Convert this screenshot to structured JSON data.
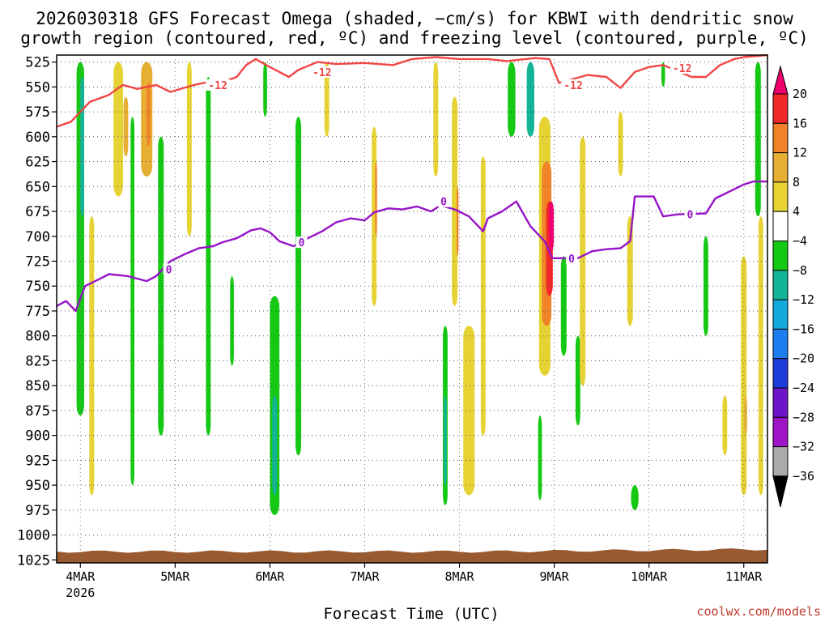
{
  "chart_data": {
    "type": "heatmap",
    "title_line1": "2026030318 GFS Forecast Omega (shaded, −cm/s) for KBWI with dendritic snow",
    "title_line2": "growth region (contoured, red, ºC) and freezing level (contoured, purple, ºC)",
    "xlabel": "Forecast Time (UTC)",
    "credit": "coolwx.com/models",
    "x_ticks": [
      "4MAR",
      "5MAR",
      "6MAR",
      "7MAR",
      "8MAR",
      "9MAR",
      "10MAR",
      "11MAR"
    ],
    "x_year": "2026",
    "x_range_days": [
      3.75,
      11.25
    ],
    "y_ticks": [
      525,
      550,
      575,
      600,
      625,
      650,
      675,
      700,
      725,
      750,
      775,
      800,
      825,
      850,
      875,
      900,
      925,
      950,
      975,
      1000,
      1025
    ],
    "y_range_hpa": [
      518,
      1028
    ],
    "colorbar": {
      "labels": [
        "20",
        "16",
        "12",
        "8",
        "4",
        "−4",
        "−8",
        "−12",
        "−16",
        "−20",
        "−24",
        "−28",
        "−32",
        "−36"
      ],
      "colors": [
        "#f0006e",
        "#f02828",
        "#f08228",
        "#e6ae32",
        "#e6d232",
        "#ffffff",
        "#14c814",
        "#14b496",
        "#14aadc",
        "#1e7ef0",
        "#1e3cdc",
        "#6e14c8",
        "#a014c8",
        "#aaaaaa"
      ]
    },
    "dendritic_contour": {
      "label": "-12",
      "color": "#f04646",
      "points": [
        [
          3.75,
          590
        ],
        [
          3.9,
          585
        ],
        [
          4.0,
          575
        ],
        [
          4.1,
          565
        ],
        [
          4.3,
          558
        ],
        [
          4.45,
          548
        ],
        [
          4.6,
          552
        ],
        [
          4.8,
          548
        ],
        [
          4.95,
          555
        ],
        [
          5.2,
          548
        ],
        [
          5.35,
          545
        ],
        [
          5.5,
          545
        ],
        [
          5.65,
          540
        ],
        [
          5.75,
          528
        ],
        [
          5.85,
          522
        ],
        [
          6.0,
          530
        ],
        [
          6.2,
          540
        ],
        [
          6.3,
          533
        ],
        [
          6.5,
          525
        ],
        [
          6.7,
          527
        ],
        [
          7.0,
          526
        ],
        [
          7.3,
          528
        ],
        [
          7.5,
          522
        ],
        [
          7.75,
          520
        ],
        [
          8.0,
          522
        ],
        [
          8.3,
          522
        ],
        [
          8.5,
          524
        ],
        [
          8.8,
          521
        ],
        [
          8.95,
          522
        ],
        [
          9.05,
          546
        ],
        [
          9.2,
          542
        ],
        [
          9.35,
          538
        ],
        [
          9.55,
          540
        ],
        [
          9.7,
          551
        ],
        [
          9.85,
          535
        ],
        [
          10.0,
          530
        ],
        [
          10.15,
          528
        ],
        [
          10.3,
          534
        ],
        [
          10.45,
          540
        ],
        [
          10.6,
          540
        ],
        [
          10.75,
          528
        ],
        [
          10.9,
          522
        ],
        [
          11.0,
          520
        ],
        [
          11.25,
          518
        ]
      ],
      "label_positions": [
        [
          5.35,
          548
        ],
        [
          6.45,
          535
        ],
        [
          9.1,
          548
        ],
        [
          10.25,
          531
        ]
      ]
    },
    "freezing_contour": {
      "label": "0",
      "color": "#9614c8",
      "points": [
        [
          3.75,
          770
        ],
        [
          3.85,
          765
        ],
        [
          3.95,
          775
        ],
        [
          4.05,
          750
        ],
        [
          4.2,
          743
        ],
        [
          4.3,
          738
        ],
        [
          4.5,
          740
        ],
        [
          4.7,
          745
        ],
        [
          4.8,
          740
        ],
        [
          4.95,
          725
        ],
        [
          5.1,
          718
        ],
        [
          5.25,
          712
        ],
        [
          5.4,
          710
        ],
        [
          5.5,
          706
        ],
        [
          5.65,
          702
        ],
        [
          5.8,
          694
        ],
        [
          5.9,
          692
        ],
        [
          6.0,
          696
        ],
        [
          6.1,
          705
        ],
        [
          6.25,
          710
        ],
        [
          6.4,
          702
        ],
        [
          6.55,
          695
        ],
        [
          6.7,
          686
        ],
        [
          6.85,
          682
        ],
        [
          7.0,
          684
        ],
        [
          7.1,
          676
        ],
        [
          7.25,
          672
        ],
        [
          7.4,
          673
        ],
        [
          7.55,
          670
        ],
        [
          7.7,
          675
        ],
        [
          7.8,
          669
        ],
        [
          7.95,
          673
        ],
        [
          8.1,
          680
        ],
        [
          8.25,
          695
        ],
        [
          8.3,
          682
        ],
        [
          8.45,
          675
        ],
        [
          8.6,
          665
        ],
        [
          8.75,
          690
        ],
        [
          8.9,
          705
        ],
        [
          8.98,
          722
        ],
        [
          9.1,
          722
        ],
        [
          9.25,
          722
        ],
        [
          9.4,
          715
        ],
        [
          9.55,
          713
        ],
        [
          9.7,
          712
        ],
        [
          9.8,
          705
        ],
        [
          9.85,
          660
        ],
        [
          10.05,
          660
        ],
        [
          10.15,
          680
        ],
        [
          10.3,
          678
        ],
        [
          10.6,
          677
        ],
        [
          10.7,
          662
        ],
        [
          10.85,
          655
        ],
        [
          11.0,
          648
        ],
        [
          11.1,
          645
        ],
        [
          11.25,
          645
        ]
      ],
      "label_positions": [
        [
          4.9,
          733
        ],
        [
          6.3,
          706
        ],
        [
          7.8,
          665
        ],
        [
          9.15,
          722
        ],
        [
          10.4,
          678
        ]
      ]
    },
    "ground_level_hpa": 1015,
    "omega_shading": [
      {
        "x": 4.0,
        "width": 0.08,
        "p_top": 525,
        "p_bot": 880,
        "band": -8
      },
      {
        "x": 4.02,
        "width": 0.04,
        "p_top": 540,
        "p_bot": 680,
        "band": -12
      },
      {
        "x": 4.12,
        "width": 0.05,
        "p_top": 680,
        "p_bot": 960,
        "band": 4
      },
      {
        "x": 4.4,
        "width": 0.1,
        "p_top": 525,
        "p_bot": 660,
        "band": 4
      },
      {
        "x": 4.48,
        "width": 0.05,
        "p_top": 560,
        "p_bot": 620,
        "band": 8
      },
      {
        "x": 4.7,
        "width": 0.12,
        "p_top": 525,
        "p_bot": 640,
        "band": 8
      },
      {
        "x": 4.72,
        "width": 0.04,
        "p_top": 545,
        "p_bot": 610,
        "band": 12
      },
      {
        "x": 4.55,
        "width": 0.04,
        "p_top": 580,
        "p_bot": 950,
        "band": -8
      },
      {
        "x": 4.85,
        "width": 0.06,
        "p_top": 600,
        "p_bot": 900,
        "band": -8
      },
      {
        "x": 5.15,
        "width": 0.05,
        "p_top": 525,
        "p_bot": 700,
        "band": 4
      },
      {
        "x": 5.35,
        "width": 0.05,
        "p_top": 540,
        "p_bot": 900,
        "band": -8
      },
      {
        "x": 5.6,
        "width": 0.04,
        "p_top": 740,
        "p_bot": 830,
        "band": -8
      },
      {
        "x": 5.95,
        "width": 0.04,
        "p_top": 525,
        "p_bot": 580,
        "band": -8
      },
      {
        "x": 6.05,
        "width": 0.1,
        "p_top": 760,
        "p_bot": 980,
        "band": -8
      },
      {
        "x": 6.05,
        "width": 0.05,
        "p_top": 860,
        "p_bot": 960,
        "band": -12
      },
      {
        "x": 6.3,
        "width": 0.06,
        "p_top": 580,
        "p_bot": 920,
        "band": -8
      },
      {
        "x": 6.6,
        "width": 0.05,
        "p_top": 525,
        "p_bot": 600,
        "band": 4
      },
      {
        "x": 7.1,
        "width": 0.05,
        "p_top": 590,
        "p_bot": 770,
        "band": 4
      },
      {
        "x": 7.12,
        "width": 0.02,
        "p_top": 625,
        "p_bot": 700,
        "band": 12
      },
      {
        "x": 7.75,
        "width": 0.05,
        "p_top": 525,
        "p_bot": 640,
        "band": 4
      },
      {
        "x": 7.85,
        "width": 0.05,
        "p_top": 790,
        "p_bot": 970,
        "band": -8
      },
      {
        "x": 7.85,
        "width": 0.03,
        "p_top": 860,
        "p_bot": 950,
        "band": -12
      },
      {
        "x": 7.95,
        "width": 0.06,
        "p_top": 560,
        "p_bot": 770,
        "band": 4
      },
      {
        "x": 7.98,
        "width": 0.02,
        "p_top": 650,
        "p_bot": 720,
        "band": 12
      },
      {
        "x": 8.1,
        "width": 0.12,
        "p_top": 790,
        "p_bot": 960,
        "band": 4
      },
      {
        "x": 8.25,
        "width": 0.05,
        "p_top": 620,
        "p_bot": 900,
        "band": 4
      },
      {
        "x": 8.55,
        "width": 0.08,
        "p_top": 525,
        "p_bot": 600,
        "band": -8
      },
      {
        "x": 8.75,
        "width": 0.08,
        "p_top": 525,
        "p_bot": 600,
        "band": -12
      },
      {
        "x": 8.9,
        "width": 0.12,
        "p_top": 580,
        "p_bot": 840,
        "band": 4
      },
      {
        "x": 8.92,
        "width": 0.1,
        "p_top": 625,
        "p_bot": 790,
        "band": 12
      },
      {
        "x": 8.95,
        "width": 0.07,
        "p_top": 665,
        "p_bot": 760,
        "band": 16
      },
      {
        "x": 8.97,
        "width": 0.05,
        "p_top": 665,
        "p_bot": 715,
        "band": 20
      },
      {
        "x": 8.85,
        "width": 0.04,
        "p_top": 880,
        "p_bot": 965,
        "band": -8
      },
      {
        "x": 9.1,
        "width": 0.06,
        "p_top": 720,
        "p_bot": 820,
        "band": -8
      },
      {
        "x": 9.25,
        "width": 0.05,
        "p_top": 800,
        "p_bot": 890,
        "band": -8
      },
      {
        "x": 9.3,
        "width": 0.06,
        "p_top": 600,
        "p_bot": 850,
        "band": 4
      },
      {
        "x": 9.7,
        "width": 0.05,
        "p_top": 575,
        "p_bot": 640,
        "band": 4
      },
      {
        "x": 9.8,
        "width": 0.06,
        "p_top": 680,
        "p_bot": 790,
        "band": 4
      },
      {
        "x": 9.85,
        "width": 0.08,
        "p_top": 950,
        "p_bot": 975,
        "band": -8
      },
      {
        "x": 10.15,
        "width": 0.04,
        "p_top": 525,
        "p_bot": 550,
        "band": -8
      },
      {
        "x": 10.6,
        "width": 0.05,
        "p_top": 700,
        "p_bot": 800,
        "band": -8
      },
      {
        "x": 10.8,
        "width": 0.05,
        "p_top": 860,
        "p_bot": 920,
        "band": 4
      },
      {
        "x": 11.0,
        "width": 0.06,
        "p_top": 720,
        "p_bot": 960,
        "band": 4
      },
      {
        "x": 11.02,
        "width": 0.03,
        "p_top": 860,
        "p_bot": 900,
        "band": 8
      },
      {
        "x": 11.15,
        "width": 0.06,
        "p_top": 525,
        "p_bot": 680,
        "band": -8
      },
      {
        "x": 11.18,
        "width": 0.05,
        "p_top": 680,
        "p_bot": 960,
        "band": 4
      }
    ]
  }
}
